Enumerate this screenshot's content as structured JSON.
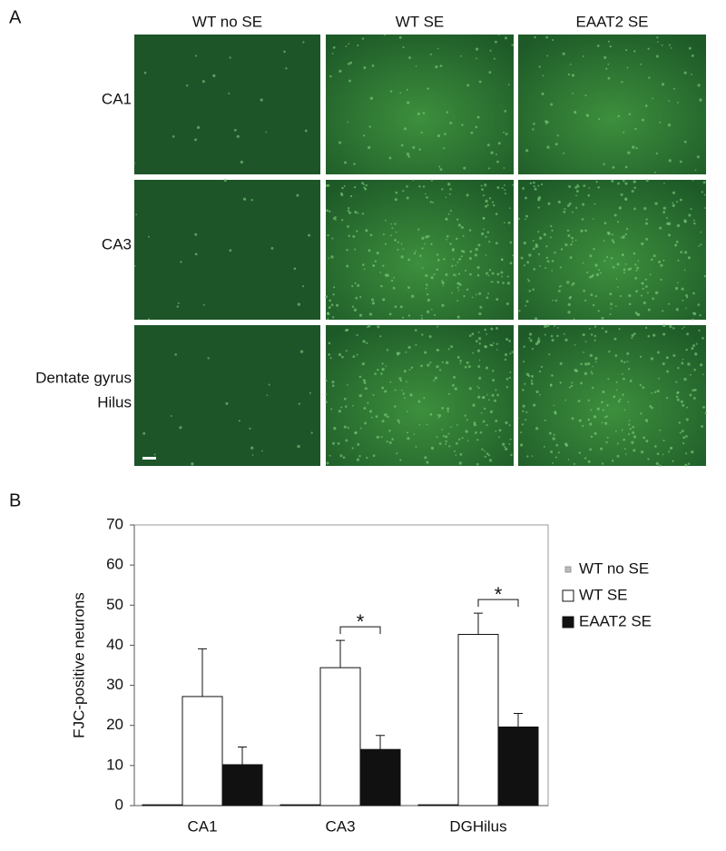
{
  "figure": {
    "panel_a_label": "A",
    "panel_b_label": "B",
    "columns": [
      "WT no SE",
      "WT SE",
      "EAAT2 SE"
    ],
    "rows": [
      [
        "CA1"
      ],
      [
        "CA3"
      ],
      [
        "Dentate gyrus",
        "Hilus"
      ]
    ]
  },
  "chart_data": {
    "type": "bar",
    "ylabel": "FJC-positive neurons",
    "categories": [
      "CA1",
      "CA3",
      "DGHilus"
    ],
    "series": [
      {
        "name": "WT no SE",
        "color": "#bbbbbb",
        "values": [
          0.2,
          0.2,
          0.2
        ],
        "errors": [
          null,
          null,
          null
        ]
      },
      {
        "name": "WT SE",
        "color": "#ffffff",
        "values": [
          27.2,
          34.4,
          42.7
        ],
        "errors": [
          11.9,
          6.8,
          5.3
        ]
      },
      {
        "name": "EAAT2 SE",
        "color": "#111111",
        "values": [
          10.2,
          14,
          19.6
        ],
        "errors": [
          4.4,
          3.5,
          3.4
        ]
      }
    ],
    "annotations": [
      {
        "text": "*",
        "category": "CA3"
      },
      {
        "text": "*",
        "category": "DGHilus"
      }
    ],
    "ylim": [
      0,
      70
    ],
    "yticks": [
      0,
      10,
      20,
      30,
      40,
      50,
      60,
      70
    ],
    "grid": false,
    "legend": "right"
  }
}
